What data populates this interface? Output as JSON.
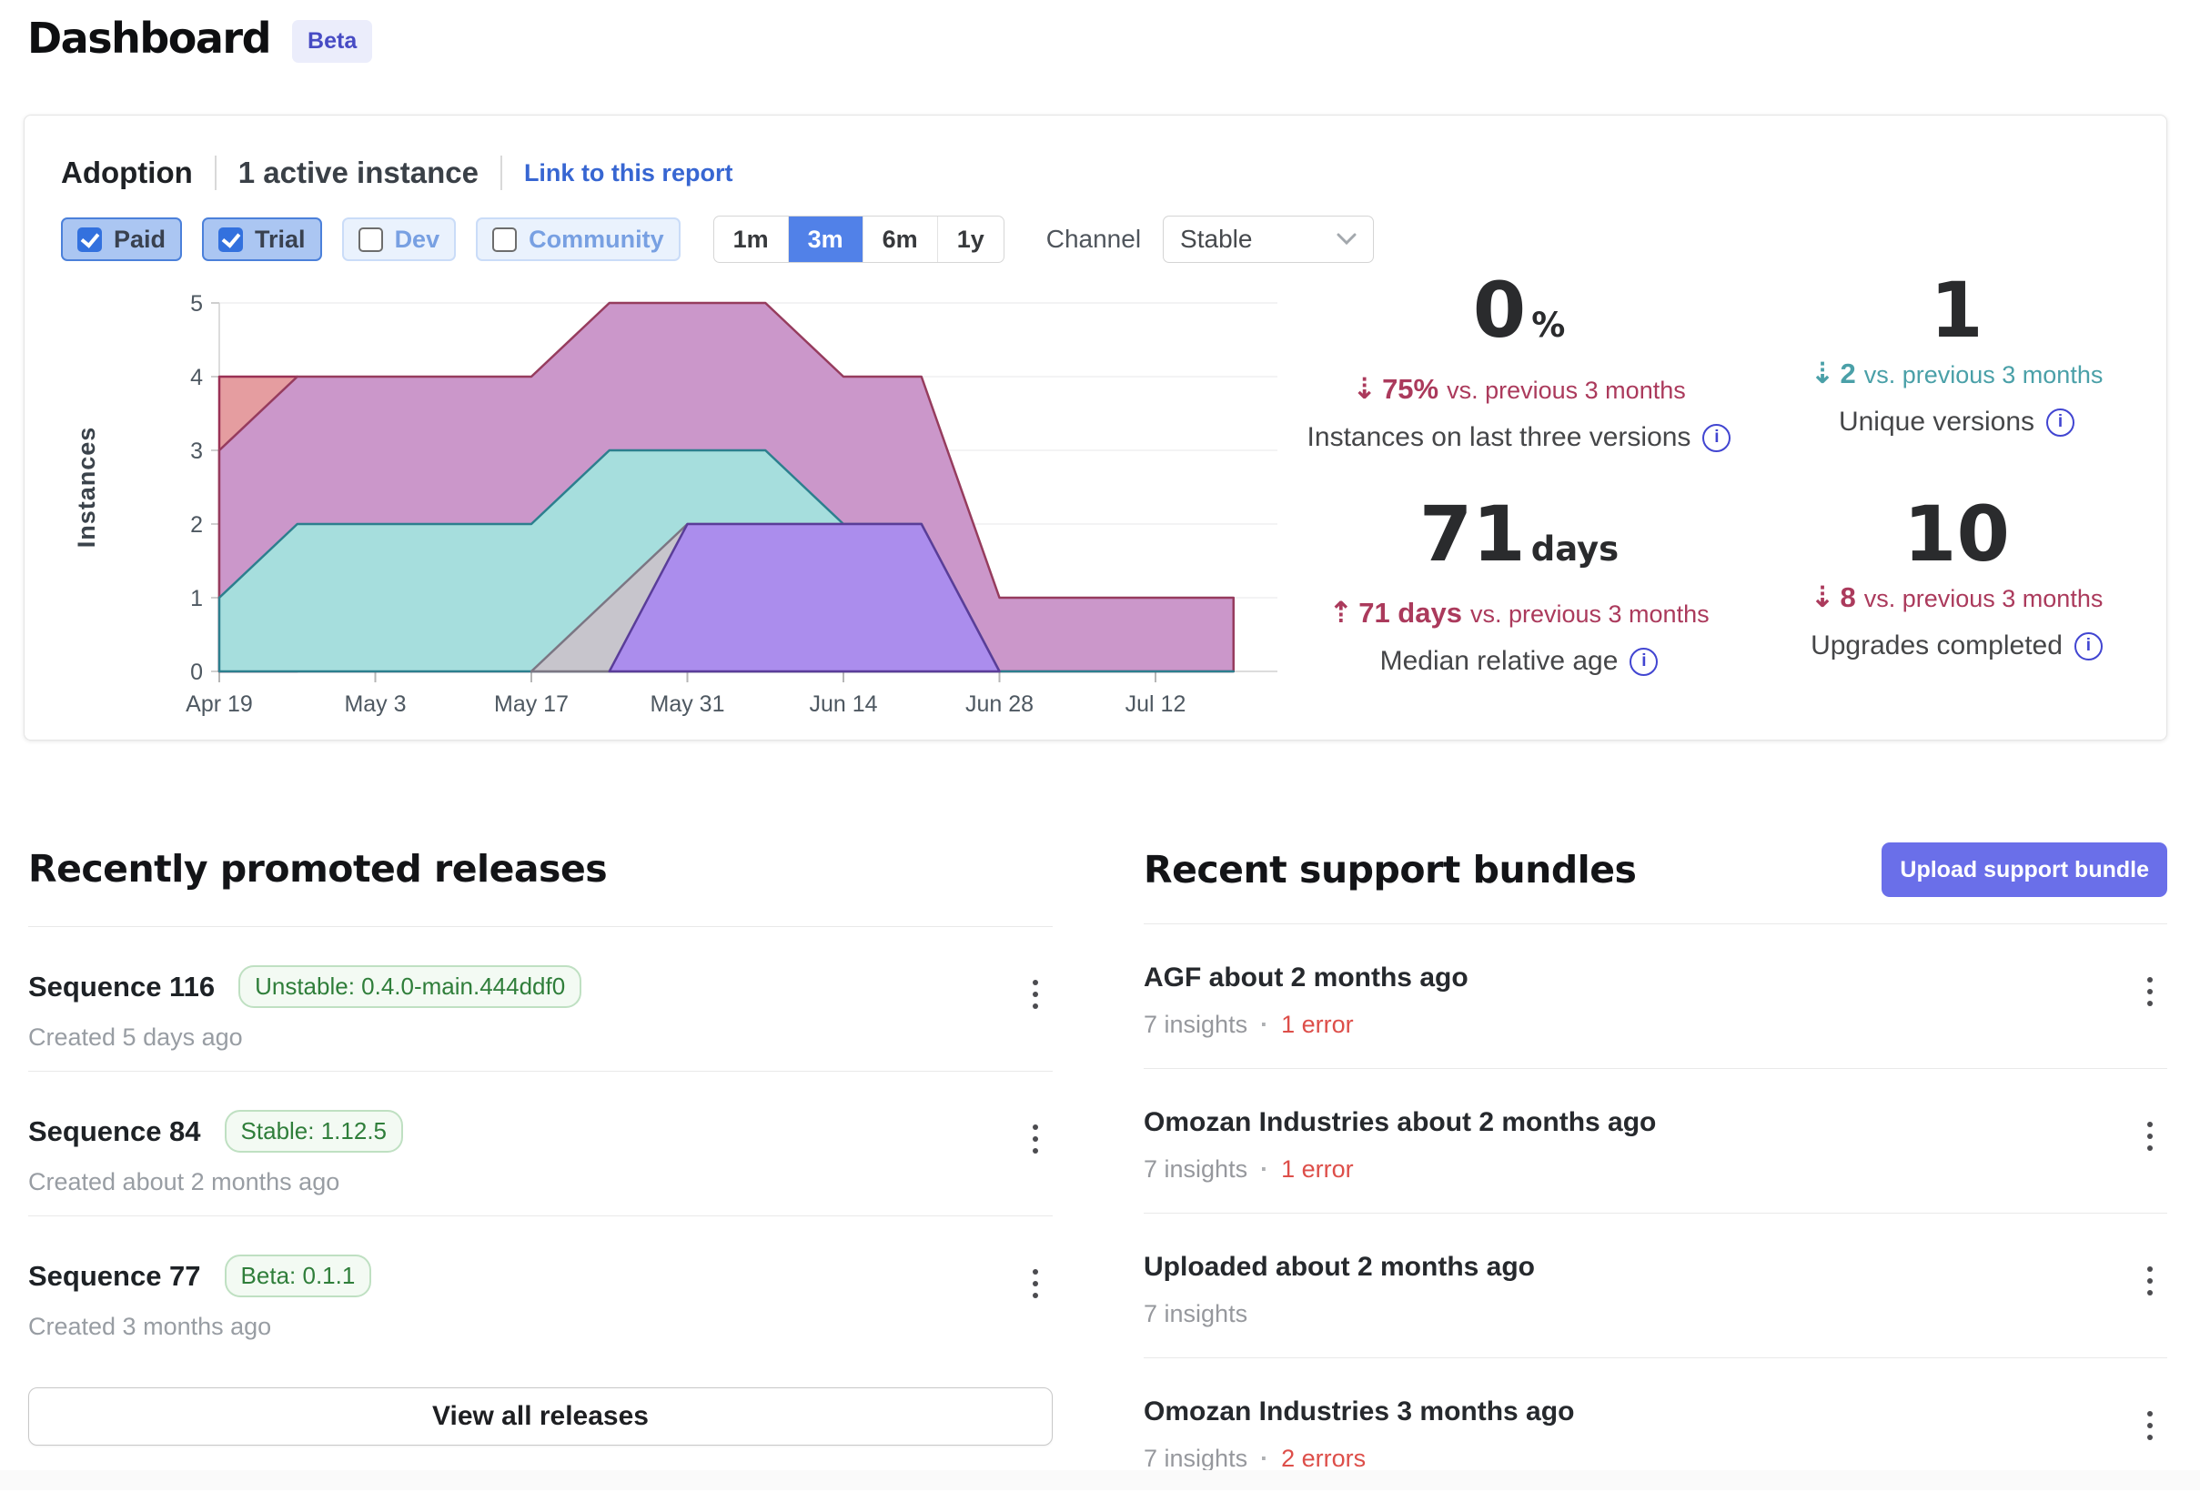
{
  "page": {
    "title": "Dashboard",
    "beta_badge": "Beta"
  },
  "icons": {
    "up_arrow": "⇡",
    "down_arrow": "⇣",
    "info": "i",
    "dot": "·"
  },
  "adoption": {
    "title": "Adoption",
    "active_instances": "1 active instance",
    "report_link": "Link to this report",
    "license_filters": [
      {
        "label": "Paid",
        "checked": true
      },
      {
        "label": "Trial",
        "checked": true
      },
      {
        "label": "Dev",
        "checked": false
      },
      {
        "label": "Community",
        "checked": false
      }
    ],
    "time_ranges": [
      {
        "label": "1m",
        "selected": false
      },
      {
        "label": "3m",
        "selected": true
      },
      {
        "label": "6m",
        "selected": false
      },
      {
        "label": "1y",
        "selected": false
      }
    ],
    "channel": {
      "label": "Channel",
      "selected": "Stable"
    },
    "stats": [
      {
        "value": "0",
        "unit": "%",
        "direction": "down",
        "delta": "75%",
        "delta_suffix": "vs. previous 3 months",
        "color": "#ab3a5c",
        "label": "Instances on last three versions"
      },
      {
        "value": "1",
        "unit": "",
        "direction": "down",
        "delta": "2",
        "delta_suffix": "vs. previous 3 months",
        "color": "#4aa0a8",
        "label": "Unique versions"
      },
      {
        "value": "71",
        "unit": "days",
        "direction": "up",
        "delta": "71 days",
        "delta_suffix": "vs. previous 3 months",
        "color": "#ab3a5c",
        "label": "Median relative age"
      },
      {
        "value": "10",
        "unit": "",
        "direction": "down",
        "delta": "8",
        "delta_suffix": "vs. previous 3 months",
        "color": "#ab3a5c",
        "label": "Upgrades completed"
      }
    ]
  },
  "chart_data": {
    "type": "area",
    "title": "Instances by version over time",
    "ylabel": "Instances",
    "ylim": [
      0,
      5
    ],
    "yticks": [
      0,
      1,
      2,
      3,
      4,
      5
    ],
    "x": [
      "Apr 19",
      "Apr 26",
      "May 3",
      "May 10",
      "May 17",
      "May 24",
      "May 31",
      "Jun 7",
      "Jun 14",
      "Jun 21",
      "Jun 28",
      "Jul 5",
      "Jul 12",
      "Jul 19"
    ],
    "x_tick_every": 2,
    "grid": true,
    "legend": false,
    "series": [
      {
        "name": "series-red",
        "fill": "#e59da0",
        "stroke": "#9a3154",
        "values": [
          4,
          4,
          null,
          null,
          null,
          null,
          null,
          null,
          null,
          null,
          null,
          null,
          null,
          null
        ]
      },
      {
        "name": "series-pink",
        "fill": "#cb97ca",
        "stroke": "#963c5e",
        "values": [
          3,
          4,
          4,
          4,
          4,
          5,
          5,
          5,
          4,
          4,
          1,
          1,
          1,
          1
        ]
      },
      {
        "name": "series-teal",
        "fill": "#a6dedd",
        "stroke": "#2c7f8e",
        "values": [
          1,
          2,
          2,
          2,
          2,
          3,
          3,
          3,
          2,
          2,
          0,
          0,
          0,
          0
        ]
      },
      {
        "name": "series-gray",
        "fill": "#c7c5cc",
        "stroke": "#7b7683",
        "values": [
          null,
          null,
          null,
          null,
          0,
          1,
          2,
          2,
          2,
          2,
          0,
          null,
          null,
          null
        ]
      },
      {
        "name": "series-purple",
        "fill": "#ab8ded",
        "stroke": "#5a3d99",
        "values": [
          null,
          null,
          null,
          null,
          null,
          0,
          2,
          2,
          2,
          2,
          0,
          null,
          null,
          null
        ]
      }
    ]
  },
  "releases": {
    "heading": "Recently promoted releases",
    "view_all": "View all releases",
    "items": [
      {
        "title": "Sequence 116",
        "badge": "Unstable: 0.4.0-main.444ddf0",
        "created": "Created 5 days ago"
      },
      {
        "title": "Sequence 84",
        "badge": "Stable: 1.12.5",
        "created": "Created about 2 months ago"
      },
      {
        "title": "Sequence 77",
        "badge": "Beta: 0.1.1",
        "created": "Created 3 months ago"
      }
    ]
  },
  "support_bundles": {
    "heading": "Recent support bundles",
    "upload_button": "Upload support bundle",
    "items": [
      {
        "title": "AGF about 2 months ago",
        "insights": "7 insights",
        "errors": "1 error"
      },
      {
        "title": "Omozan Industries about 2 months ago",
        "insights": "7 insights",
        "errors": "1 error"
      },
      {
        "title": "Uploaded about 2 months ago",
        "insights": "7 insights",
        "errors": null
      },
      {
        "title": "Omozan Industries 3 months ago",
        "insights": "7 insights",
        "errors": "2 errors"
      }
    ]
  }
}
